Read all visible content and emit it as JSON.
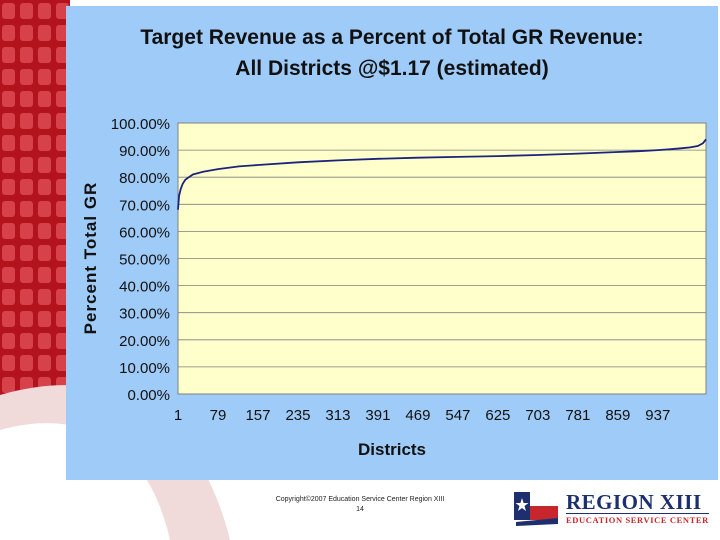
{
  "chart_data": {
    "type": "line",
    "title": "Target Revenue as a Percent of Total GR Revenue:",
    "subtitle": "All Districts @$1.17 (estimated)",
    "xlabel": "Districts",
    "ylabel": "Percent Total GR",
    "xlim": [
      1,
      1031
    ],
    "ylim": [
      0,
      1
    ],
    "x_ticks": [
      "1",
      "79",
      "157",
      "235",
      "313",
      "391",
      "469",
      "547",
      "625",
      "703",
      "781",
      "859",
      "937"
    ],
    "y_ticks": [
      "100.00%",
      "90.00%",
      "80.00%",
      "70.00%",
      "60.00%",
      "50.00%",
      "40.00%",
      "30.00%",
      "20.00%",
      "10.00%",
      "0.00%"
    ],
    "grid": true,
    "legend": "none",
    "series": [
      {
        "color": "#1a237e",
        "x": [
          1,
          3,
          6,
          10,
          15,
          22,
          30,
          40,
          50,
          79,
          120,
          157,
          235,
          313,
          391,
          469,
          547,
          625,
          703,
          781,
          859,
          900,
          937,
          960,
          985,
          1000,
          1015,
          1025,
          1031
        ],
        "y": [
          0.68,
          0.73,
          0.755,
          0.775,
          0.79,
          0.8,
          0.81,
          0.815,
          0.82,
          0.83,
          0.84,
          0.845,
          0.855,
          0.862,
          0.868,
          0.872,
          0.875,
          0.878,
          0.882,
          0.887,
          0.893,
          0.896,
          0.9,
          0.903,
          0.907,
          0.91,
          0.915,
          0.925,
          0.94
        ]
      }
    ]
  },
  "x_axis_title": "Districts",
  "footer": {
    "copyright": "Copyright©2007 Education Service Center Region XIII",
    "page_number": "14"
  },
  "logo": {
    "name": "REGION XIII",
    "subtitle": "EDUCATION SERVICE CENTER",
    "colors": {
      "blue": "#1d2f6e",
      "red": "#c8262d"
    }
  },
  "colors": {
    "panel_background": "#9fcbf8",
    "plot_background": "#ffffcc",
    "gridline": "#7f7f7f",
    "line": "#1a237e",
    "slide_accent": "#c0202a"
  }
}
